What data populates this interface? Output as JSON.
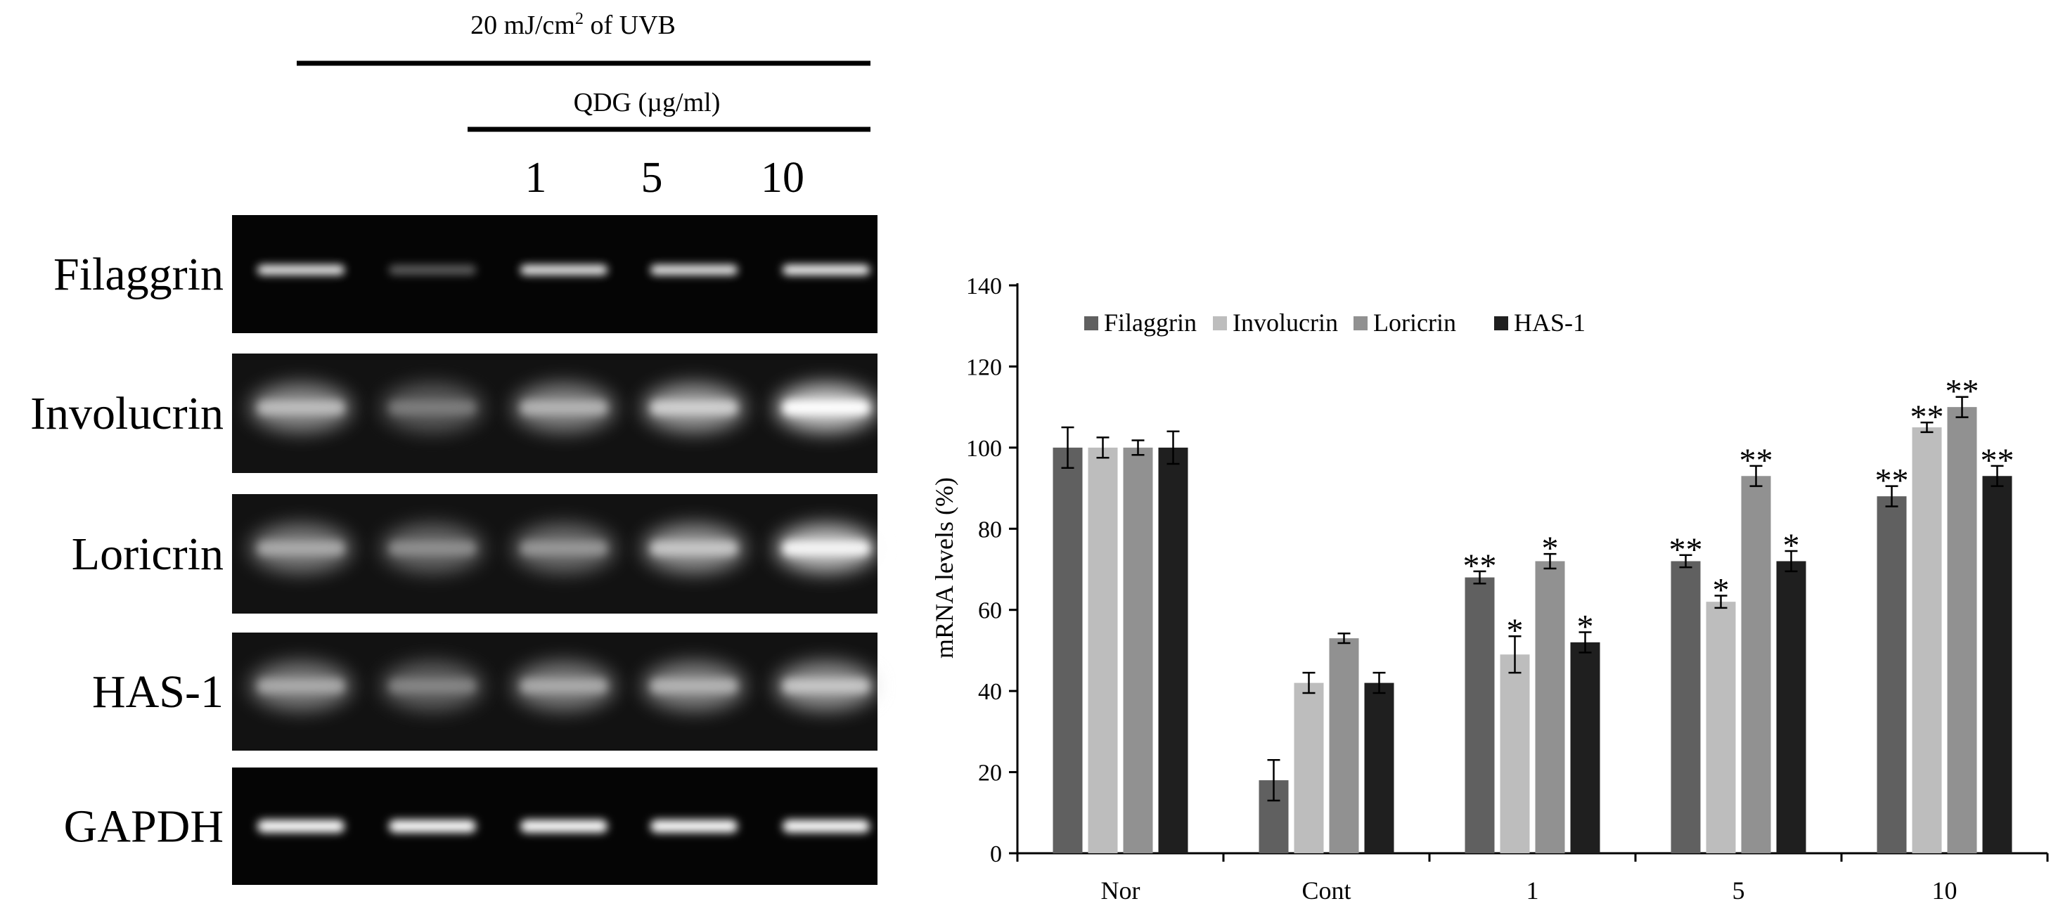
{
  "gel_panel": {
    "uvb_label_prefix": "20 mJ/cm",
    "uvb_label_sup": "2",
    "uvb_label_suffix": " of UVB",
    "qdg_label": "QDG (µg/ml)",
    "dose_labels": [
      "1",
      "5",
      "10"
    ],
    "row_labels": [
      "Filaggrin",
      "Involucrin",
      "Loricrin",
      "HAS-1",
      "GAPDH"
    ],
    "band_intensity": [
      [
        0.95,
        0.35,
        0.95,
        0.95,
        1.0
      ],
      [
        0.65,
        0.3,
        0.6,
        0.75,
        1.0
      ],
      [
        0.55,
        0.4,
        0.45,
        0.7,
        0.95
      ],
      [
        0.55,
        0.35,
        0.55,
        0.6,
        0.7
      ],
      [
        1.0,
        1.0,
        1.0,
        1.0,
        1.0
      ]
    ]
  },
  "chart_data": {
    "type": "bar",
    "categories": [
      "Nor",
      "Cont",
      "1",
      "5",
      "10"
    ],
    "ylabel": "mRNA levels (%)",
    "xlabel": "",
    "ylim": [
      0,
      140
    ],
    "yticks": [
      "0",
      "20",
      "40",
      "60",
      "80",
      "100",
      "120",
      "140"
    ],
    "legend_position": "top-left inside",
    "series": [
      {
        "name": "Filaggrin",
        "color": "#606060",
        "values": [
          100,
          18,
          68,
          72,
          88
        ],
        "errors": [
          5,
          5,
          1.5,
          1.5,
          2.5
        ],
        "significance": [
          "",
          "",
          "**",
          "**",
          "**"
        ]
      },
      {
        "name": "Involucrin",
        "color": "#bdbdbd",
        "values": [
          100,
          42,
          49,
          62,
          105
        ],
        "errors": [
          2.5,
          2.5,
          4.5,
          1.5,
          1.2
        ],
        "significance": [
          "",
          "",
          "*",
          "*",
          "**"
        ]
      },
      {
        "name": "Loricrin",
        "color": "#919191",
        "values": [
          100,
          53,
          72,
          93,
          110
        ],
        "errors": [
          1.8,
          1.2,
          1.8,
          2.5,
          2.5
        ],
        "significance": [
          "",
          "",
          "*",
          "**",
          "**"
        ]
      },
      {
        "name": "HAS-1",
        "color": "#1f1f1f",
        "values": [
          100,
          42,
          52,
          72,
          93
        ],
        "errors": [
          4,
          2.5,
          2.5,
          2.5,
          2.5
        ],
        "significance": [
          "",
          "",
          "*",
          "*",
          "**"
        ]
      }
    ]
  }
}
